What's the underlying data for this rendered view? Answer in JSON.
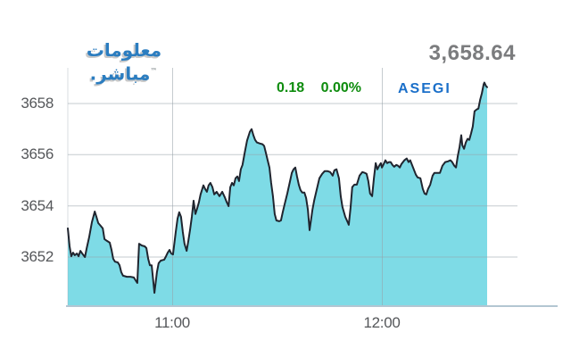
{
  "logo": {
    "line1": "معلومات",
    "line2": "مباشر.",
    "tm": "™",
    "color": "#2b7dc0"
  },
  "header": {
    "last_value": "3,658.64",
    "change": "0.18",
    "change_percent": "0.00%",
    "symbol": "ASEGI",
    "change_color": "#0e8c0e",
    "value_color": "#7b7c7e",
    "symbol_color": "#1a6fc9"
  },
  "chart_data": {
    "type": "area",
    "title": "",
    "xlabel": "",
    "ylabel": "",
    "grid": true,
    "legend": "none",
    "x_axis": {
      "start_time": "10:30",
      "end_time": "12:30",
      "domain_minutes": [
        0,
        120
      ],
      "tick_minutes": [
        30,
        90
      ],
      "tick_labels": [
        "11:00",
        "12:00"
      ]
    },
    "y_axis": {
      "tick_values": [
        3652,
        3654,
        3656,
        3658
      ],
      "tick_labels": [
        "3652",
        "3654",
        "3656",
        "3658"
      ],
      "ylim": [
        3650.08,
        3659.4
      ]
    },
    "last_value": 3658.64,
    "fill_color": "#7edbe6",
    "line_color": "#20252f",
    "grid_color": "rgba(150,160,168,0.55)",
    "axis_line_color": "#b3c6d2",
    "points": [
      [
        0,
        3653.12
      ],
      [
        0.5,
        3652.42
      ],
      [
        1,
        3652.03
      ],
      [
        1.5,
        3652.17
      ],
      [
        2,
        3652.07
      ],
      [
        2.6,
        3652.14
      ],
      [
        3.1,
        3652.03
      ],
      [
        3.6,
        3652.24
      ],
      [
        4.1,
        3652.14
      ],
      [
        4.9,
        3652.0
      ],
      [
        5.4,
        3652.35
      ],
      [
        6.1,
        3652.77
      ],
      [
        6.9,
        3653.36
      ],
      [
        7.7,
        3653.78
      ],
      [
        8.2,
        3653.57
      ],
      [
        8.7,
        3653.33
      ],
      [
        9.4,
        3653.22
      ],
      [
        10,
        3653.12
      ],
      [
        10.5,
        3652.7
      ],
      [
        11.2,
        3652.63
      ],
      [
        12,
        3652.56
      ],
      [
        12.5,
        3652.28
      ],
      [
        13,
        3651.93
      ],
      [
        13.5,
        3651.82
      ],
      [
        14.3,
        3651.79
      ],
      [
        14.8,
        3651.68
      ],
      [
        15.3,
        3651.41
      ],
      [
        15.8,
        3651.27
      ],
      [
        16.9,
        3651.23
      ],
      [
        17.9,
        3651.23
      ],
      [
        18.9,
        3651.2
      ],
      [
        19.4,
        3651.09
      ],
      [
        19.9,
        3650.99
      ],
      [
        20.4,
        3652.52
      ],
      [
        21.2,
        3652.45
      ],
      [
        22,
        3652.42
      ],
      [
        22.5,
        3652.35
      ],
      [
        23,
        3651.93
      ],
      [
        23.5,
        3651.68
      ],
      [
        24,
        3651.68
      ],
      [
        24.8,
        3650.6
      ],
      [
        25.5,
        3651.41
      ],
      [
        26,
        3651.76
      ],
      [
        26.6,
        3651.86
      ],
      [
        27.6,
        3651.9
      ],
      [
        28.1,
        3652.03
      ],
      [
        28.6,
        3652.17
      ],
      [
        29.1,
        3652.28
      ],
      [
        29.6,
        3652.14
      ],
      [
        30.1,
        3652.1
      ],
      [
        30.9,
        3652.98
      ],
      [
        31.4,
        3653.5
      ],
      [
        31.9,
        3653.75
      ],
      [
        32.4,
        3653.57
      ],
      [
        32.9,
        3652.98
      ],
      [
        33.4,
        3652.52
      ],
      [
        34,
        3652.24
      ],
      [
        34.5,
        3652.63
      ],
      [
        35,
        3653.08
      ],
      [
        35.5,
        3653.57
      ],
      [
        36,
        3654.2
      ],
      [
        36.5,
        3653.68
      ],
      [
        37,
        3653.89
      ],
      [
        37.5,
        3654.13
      ],
      [
        38,
        3654.45
      ],
      [
        38.8,
        3654.8
      ],
      [
        39.3,
        3654.66
      ],
      [
        39.8,
        3654.55
      ],
      [
        40.3,
        3654.8
      ],
      [
        40.8,
        3654.9
      ],
      [
        41.4,
        3654.73
      ],
      [
        41.9,
        3654.45
      ],
      [
        42.6,
        3654.55
      ],
      [
        43.4,
        3654.38
      ],
      [
        44.2,
        3654.55
      ],
      [
        44.9,
        3654.34
      ],
      [
        45.4,
        3654.17
      ],
      [
        46,
        3653.99
      ],
      [
        46.5,
        3654.73
      ],
      [
        47,
        3654.9
      ],
      [
        47.5,
        3654.8
      ],
      [
        48,
        3655.08
      ],
      [
        48.5,
        3655.15
      ],
      [
        49,
        3654.97
      ],
      [
        49.5,
        3655.43
      ],
      [
        50,
        3655.6
      ],
      [
        50.6,
        3656.06
      ],
      [
        51.3,
        3656.55
      ],
      [
        52.1,
        3656.9
      ],
      [
        52.6,
        3657.0
      ],
      [
        53.1,
        3656.76
      ],
      [
        53.6,
        3656.58
      ],
      [
        54.1,
        3656.48
      ],
      [
        54.9,
        3656.44
      ],
      [
        55.7,
        3656.41
      ],
      [
        56.2,
        3656.34
      ],
      [
        56.7,
        3656.06
      ],
      [
        57.2,
        3655.78
      ],
      [
        57.7,
        3655.5
      ],
      [
        58.2,
        3654.9
      ],
      [
        58.7,
        3654.38
      ],
      [
        59.2,
        3653.68
      ],
      [
        59.7,
        3653.43
      ],
      [
        60.5,
        3653.4
      ],
      [
        61,
        3653.43
      ],
      [
        61.5,
        3653.75
      ],
      [
        62,
        3654.03
      ],
      [
        62.8,
        3654.48
      ],
      [
        63.6,
        3654.97
      ],
      [
        64.1,
        3655.29
      ],
      [
        64.6,
        3655.43
      ],
      [
        65.1,
        3655.5
      ],
      [
        65.6,
        3655.15
      ],
      [
        66.1,
        3654.83
      ],
      [
        66.6,
        3654.62
      ],
      [
        67.1,
        3654.52
      ],
      [
        67.7,
        3654.52
      ],
      [
        68.2,
        3654.31
      ],
      [
        68.7,
        3653.85
      ],
      [
        69.2,
        3653.05
      ],
      [
        70,
        3653.85
      ],
      [
        70.5,
        3654.2
      ],
      [
        71.2,
        3654.62
      ],
      [
        72,
        3655.08
      ],
      [
        72.8,
        3655.25
      ],
      [
        73.5,
        3655.36
      ],
      [
        74.3,
        3655.36
      ],
      [
        75.1,
        3655.32
      ],
      [
        75.8,
        3655.18
      ],
      [
        76.3,
        3655.39
      ],
      [
        76.9,
        3655.43
      ],
      [
        77.6,
        3655.08
      ],
      [
        78.1,
        3654.38
      ],
      [
        78.6,
        3653.96
      ],
      [
        79.4,
        3653.57
      ],
      [
        80.2,
        3653.33
      ],
      [
        80.4,
        3653.26
      ],
      [
        80.9,
        3653.92
      ],
      [
        81.4,
        3654.73
      ],
      [
        82,
        3654.83
      ],
      [
        82.7,
        3654.83
      ],
      [
        83.5,
        3655.18
      ],
      [
        84.3,
        3655.32
      ],
      [
        85,
        3655.29
      ],
      [
        85.5,
        3655.25
      ],
      [
        86,
        3654.97
      ],
      [
        86.5,
        3654.48
      ],
      [
        87.1,
        3654.38
      ],
      [
        87.6,
        3655.08
      ],
      [
        88.1,
        3655.67
      ],
      [
        88.6,
        3655.43
      ],
      [
        89.1,
        3655.57
      ],
      [
        89.6,
        3655.67
      ],
      [
        89.9,
        3655.5
      ],
      [
        90.4,
        3655.64
      ],
      [
        90.9,
        3655.78
      ],
      [
        91.4,
        3655.67
      ],
      [
        91.9,
        3655.71
      ],
      [
        92.4,
        3655.71
      ],
      [
        92.9,
        3655.6
      ],
      [
        93.4,
        3655.53
      ],
      [
        94,
        3655.6
      ],
      [
        94.5,
        3655.57
      ],
      [
        95,
        3655.5
      ],
      [
        95.5,
        3655.64
      ],
      [
        96.3,
        3655.78
      ],
      [
        97,
        3655.85
      ],
      [
        97.5,
        3655.71
      ],
      [
        98,
        3655.78
      ],
      [
        98.8,
        3655.5
      ],
      [
        99.6,
        3655.22
      ],
      [
        100.1,
        3655.11
      ],
      [
        100.9,
        3655.08
      ],
      [
        101.6,
        3654.66
      ],
      [
        102.1,
        3654.48
      ],
      [
        102.6,
        3654.45
      ],
      [
        103.1,
        3654.66
      ],
      [
        103.7,
        3654.83
      ],
      [
        104.4,
        3655.18
      ],
      [
        104.9,
        3655.29
      ],
      [
        105.7,
        3655.29
      ],
      [
        106.5,
        3655.29
      ],
      [
        107.2,
        3655.57
      ],
      [
        108,
        3655.71
      ],
      [
        108.8,
        3655.74
      ],
      [
        109.5,
        3655.78
      ],
      [
        110,
        3655.71
      ],
      [
        110.6,
        3655.57
      ],
      [
        111.1,
        3655.5
      ],
      [
        111.6,
        3655.95
      ],
      [
        112.1,
        3656.3
      ],
      [
        112.6,
        3656.76
      ],
      [
        112.9,
        3656.37
      ],
      [
        113.4,
        3656.23
      ],
      [
        113.9,
        3656.48
      ],
      [
        114.4,
        3656.62
      ],
      [
        114.9,
        3656.58
      ],
      [
        115.4,
        3656.83
      ],
      [
        115.9,
        3657.1
      ],
      [
        116.4,
        3657.7
      ],
      [
        117,
        3657.77
      ],
      [
        117.5,
        3657.8
      ],
      [
        118,
        3658.15
      ],
      [
        118.5,
        3658.4
      ],
      [
        119,
        3658.75
      ],
      [
        119.2,
        3658.82
      ],
      [
        119.7,
        3658.68
      ],
      [
        120,
        3658.64
      ]
    ]
  }
}
